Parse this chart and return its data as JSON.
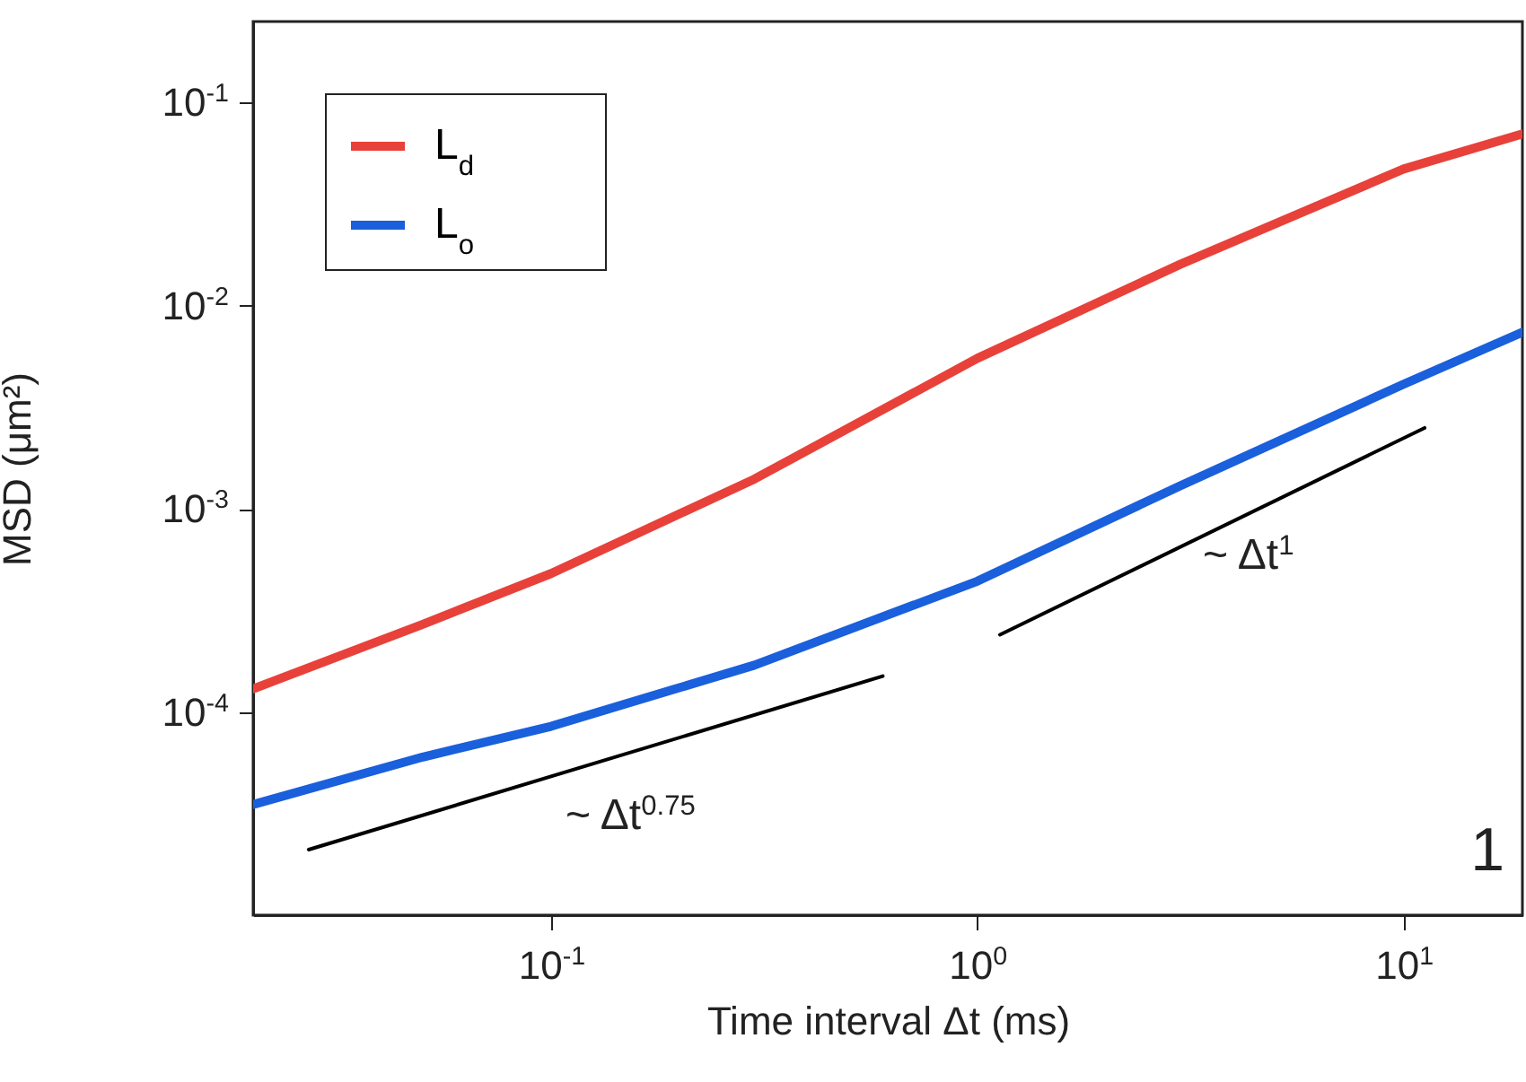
{
  "chart_data": {
    "type": "line",
    "xlabel": "Time interval Δt (ms)",
    "ylabel": "MSD (μm²)",
    "log": "xy",
    "xlim": [
      0.02,
      19
    ],
    "ylim": [
      1e-05,
      0.25
    ],
    "xticks": [
      {
        "value": 0.1,
        "label": "10$^{-1}$"
      },
      {
        "value": 1,
        "label": "10$^{0}$"
      },
      {
        "value": 10,
        "label": "10$^{1}$"
      }
    ],
    "yticks": [
      {
        "value": 0.0001,
        "label": "10$^{-4}$"
      },
      {
        "value": 0.001,
        "label": "10$^{-3}$"
      },
      {
        "value": 0.01,
        "label": "10$^{-2}$"
      },
      {
        "value": 0.1,
        "label": "10$^{-1}$"
      }
    ],
    "legend": "top left",
    "series": [
      {
        "name": "L$_{d}$",
        "color": "#e8413a",
        "x": [
          0.02,
          0.05,
          0.1,
          0.3,
          1,
          3,
          10,
          19
        ],
        "values": [
          0.00013,
          0.00027,
          0.00048,
          0.0014,
          0.0055,
          0.016,
          0.047,
          0.07
        ]
      },
      {
        "name": "L$_{o}$",
        "color": "#1a5fdc",
        "x": [
          0.02,
          0.05,
          0.1,
          0.3,
          1,
          3,
          10,
          19
        ],
        "values": [
          3.5e-05,
          6e-05,
          8.5e-05,
          0.00017,
          0.00044,
          0.0013,
          0.0041,
          0.0074
        ]
      },
      {
        "type": "line",
        "color": "#000000",
        "x": [
          0.027,
          0.6
        ],
        "values": [
          2.1e-05,
          0.00015
        ]
      },
      {
        "type": "line",
        "color": "#000000",
        "x": [
          1.13,
          11.2
        ],
        "values": [
          0.00024,
          0.0025
        ]
      }
    ],
    "annotations": [
      "~ Δt$^{0.75}$",
      "~ Δt$^{1}$",
      "1"
    ]
  }
}
